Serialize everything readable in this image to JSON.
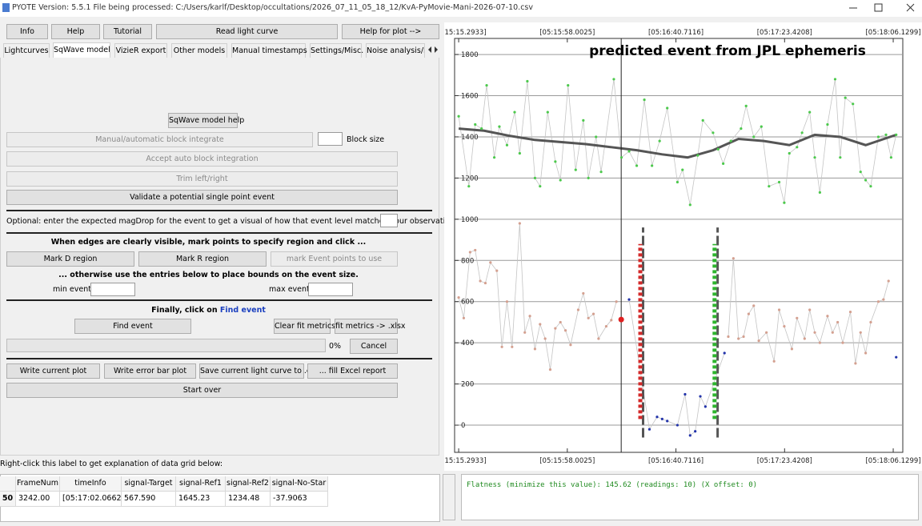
{
  "window": {
    "title": "PYOTE Version: 5.5.1  File being processed: C:/Users/karlf/Desktop/occultations/2026_07_11_05_18_12/KvA-PyMovie-Mani-2026-07-10.csv"
  },
  "toolbar": [
    "Info",
    "Help",
    "Tutorial",
    "Read light curve",
    "Help for plot -->"
  ],
  "tabs": [
    "Lightcurves",
    "SqWave model",
    "VizieR export",
    "Other models",
    "Manual timestamps",
    "Settings/Misc.",
    "Noise analysis/l"
  ],
  "panel": {
    "sqwave_help": "SqWave model help",
    "block_integrate": "Manual/automatic block integrate",
    "block_size": "Block size",
    "accept_block": "Accept auto block integration",
    "trim": "Trim left/right",
    "validate": "Validate a potential single point event",
    "optional": "Optional: enter the expected magDrop for the event to get a visual of how that event level matches your observation.",
    "edges_hint": "When edges are clearly visible, mark points to specify region and click ...",
    "mark_d": "Mark D region",
    "mark_r": "Mark R region",
    "mark_event": "mark Event points to use",
    "otherwise": "... otherwise use the entries below to place bounds on the event size.",
    "min_event": "min event:",
    "max_event": "max event:",
    "finally": "Finally, click on",
    "finally_link": "Find event",
    "find_event": "Find event",
    "clear_fit": "Clear fit metrics",
    "fit_xlsx": "fit metrics -> .xlsx",
    "progress": "0%",
    "cancel": "Cancel",
    "write_plot": "Write current plot",
    "write_error": "Write error bar plot",
    "save_csv": "Save current light curve to .csv",
    "fill_excel": "... fill Excel report",
    "start_over": "Start over"
  },
  "grid_hint": "Right-click this label to get explanation of data grid below:",
  "table": {
    "columns": [
      "FrameNum",
      "timeInfo",
      "signal-Target",
      "signal-Ref1",
      "signal-Ref2",
      "signal-No-Star"
    ],
    "rows": [
      {
        "index": "50",
        "cells": [
          "3242.00",
          "[05:17:02.0662]",
          "567.590",
          "1645.23",
          "1234.48",
          "-37.9063"
        ]
      }
    ]
  },
  "output": "Flatness (minimize this value): 145.62 (readings: 10) (X offset: 0)",
  "chart_data": {
    "type": "scatter",
    "annotation": "predicted event from JPL ephemeris",
    "grid": true,
    "xlim": [
      -1.6,
      174.6
    ],
    "ylim": [
      -132,
      1878
    ],
    "xticks": [
      {
        "value": 0,
        "label": "[05:15:15.2933]"
      },
      {
        "value": 42.7091,
        "label": "[05:15:58.0025]"
      },
      {
        "value": 85.4183,
        "label": "[05:16:40.7116]"
      },
      {
        "value": 128.1275,
        "label": "[05:17:23.4208]"
      },
      {
        "value": 170.8366,
        "label": "[05:18:06.1299]"
      }
    ],
    "yticks": [
      0,
      200,
      400,
      600,
      800,
      1000,
      1200,
      1400,
      1600,
      1800
    ],
    "series": [
      {
        "mode": "markers+line",
        "color": "#4cc94c",
        "line_color": "#c4c4c4",
        "x": [
          0,
          4,
          6.5,
          9,
          11,
          14,
          16,
          19,
          22,
          24,
          27,
          30,
          32,
          35,
          38,
          40,
          43,
          46,
          49,
          51,
          54,
          56,
          61,
          64,
          67,
          70,
          73,
          76,
          79,
          82,
          86,
          88,
          91,
          94,
          96,
          100,
          102,
          104,
          107,
          111,
          113,
          116,
          119,
          122,
          126,
          128,
          130,
          133,
          135,
          138,
          140,
          142,
          145,
          148,
          150,
          152,
          155,
          158,
          160,
          162,
          165,
          168,
          170,
          172
        ],
        "values": [
          1500,
          1160,
          1460,
          1440,
          1650,
          1300,
          1450,
          1360,
          1520,
          1320,
          1670,
          1200,
          1160,
          1520,
          1280,
          1190,
          1650,
          1240,
          1480,
          1200,
          1400,
          1230,
          1680,
          1300,
          1330,
          1260,
          1580,
          1260,
          1380,
          1540,
          1180,
          1240,
          1070,
          1310,
          1480,
          1420,
          1340,
          1270,
          1380,
          1440,
          1550,
          1400,
          1450,
          1160,
          1180,
          1080,
          1320,
          1350,
          1420,
          1520,
          1300,
          1130,
          1460,
          1680,
          1300,
          1590,
          1560,
          1230,
          1190,
          1160,
          1400,
          1410,
          1300,
          1410
        ]
      },
      {
        "mode": "line",
        "color": "#555555",
        "x": [
          0,
          10,
          20,
          30,
          40,
          50,
          60,
          70,
          80,
          90,
          100,
          110,
          120,
          130,
          140,
          150,
          160,
          172
        ],
        "values": [
          1440,
          1430,
          1405,
          1385,
          1375,
          1365,
          1350,
          1335,
          1315,
          1300,
          1335,
          1390,
          1380,
          1360,
          1410,
          1400,
          1360,
          1410
        ]
      },
      {
        "mode": "markers+line",
        "color": "#d4a090",
        "line_color": "#c4c4c4",
        "x": [
          0,
          2,
          4.5,
          6.5,
          8.5,
          10.5,
          12.5,
          15,
          17,
          19,
          21,
          24,
          26,
          28,
          30,
          32,
          34,
          36,
          38,
          40,
          42,
          44,
          47,
          49,
          51,
          53,
          55,
          58,
          60,
          62
        ],
        "values": [
          620,
          520,
          840,
          850,
          700,
          690,
          790,
          750,
          380,
          600,
          380,
          980,
          450,
          530,
          370,
          490,
          420,
          270,
          470,
          500,
          460,
          390,
          560,
          640,
          520,
          540,
          420,
          480,
          510,
          600
        ]
      },
      {
        "mode": "markers+line",
        "color": "#2233aa",
        "line_color": "#c4c4c4",
        "x": [
          67,
          75,
          78,
          80,
          82,
          86,
          89,
          91,
          93,
          95,
          97,
          104.5
        ],
        "values": [
          610,
          -20,
          40,
          30,
          20,
          0,
          150,
          -50,
          -30,
          140,
          90,
          350
        ]
      },
      {
        "mode": "markers+line",
        "color": "#d4a090",
        "line_color": "#c4c4c4",
        "x": [
          106,
          108,
          110,
          112,
          114,
          116,
          118,
          121,
          124,
          126,
          128,
          131,
          133,
          136,
          138,
          140,
          142,
          145,
          147,
          149,
          151,
          154,
          156,
          158,
          160,
          162,
          165,
          167,
          169
        ],
        "values": [
          430,
          810,
          420,
          430,
          540,
          580,
          410,
          450,
          310,
          560,
          480,
          370,
          520,
          420,
          560,
          450,
          400,
          530,
          450,
          500,
          400,
          550,
          300,
          450,
          350,
          500,
          600,
          610,
          700
        ]
      },
      {
        "mode": "markers",
        "color": "#2233aa",
        "x": [
          172
        ],
        "values": [
          330
        ]
      },
      {
        "mode": "markers",
        "color": "#e02020",
        "size": 3.5,
        "x": [
          63.9
        ],
        "values": [
          513
        ]
      }
    ],
    "edges": [
      {
        "x": 71.4,
        "ymin": 30,
        "ymax": 880,
        "color": "#d42a2a"
      },
      {
        "x": 100.6,
        "ymin": 30,
        "ymax": 880,
        "color": "#2db52d"
      }
    ],
    "bounds": [
      {
        "x": 72.5,
        "ymin": -60,
        "ymax": 960,
        "color": "#555555"
      },
      {
        "x": 101.8,
        "ymin": -60,
        "ymax": 960,
        "color": "#555555"
      }
    ],
    "predicted": {
      "x": 63.9,
      "color": "#222222"
    }
  }
}
